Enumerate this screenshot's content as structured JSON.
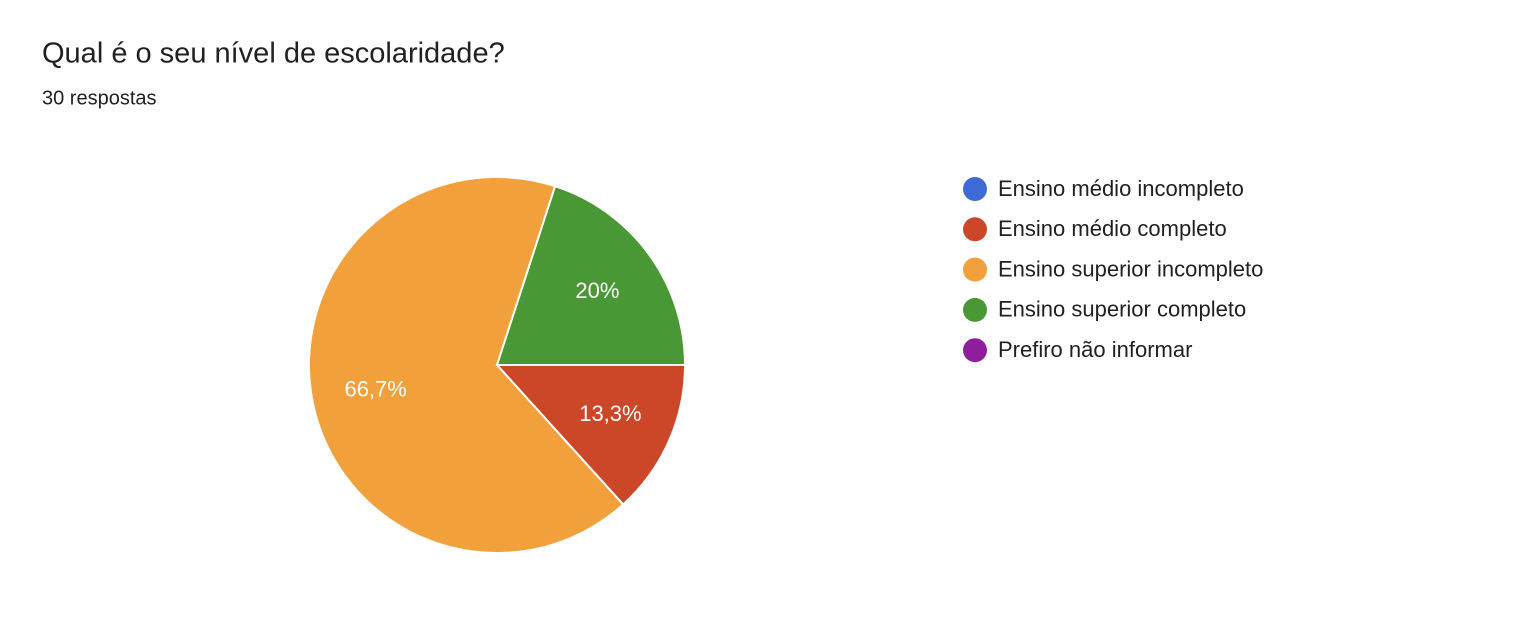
{
  "chart_data": {
    "type": "pie",
    "title": "Qual é o seu nível de escolaridade?",
    "subtitle": "30 respostas",
    "categories": [
      "Ensino médio incompleto",
      "Ensino médio completo",
      "Ensino superior incompleto",
      "Ensino superior completo",
      "Prefiro não informar"
    ],
    "values": [
      0,
      13.3,
      66.7,
      20,
      0
    ],
    "value_labels": [
      null,
      "13,3%",
      "66,7%",
      "20%",
      null
    ],
    "colors": [
      "#3d6ad6",
      "#cc4628",
      "#f2a03b",
      "#4a9835",
      "#8e1e9c"
    ],
    "legend": "right"
  }
}
